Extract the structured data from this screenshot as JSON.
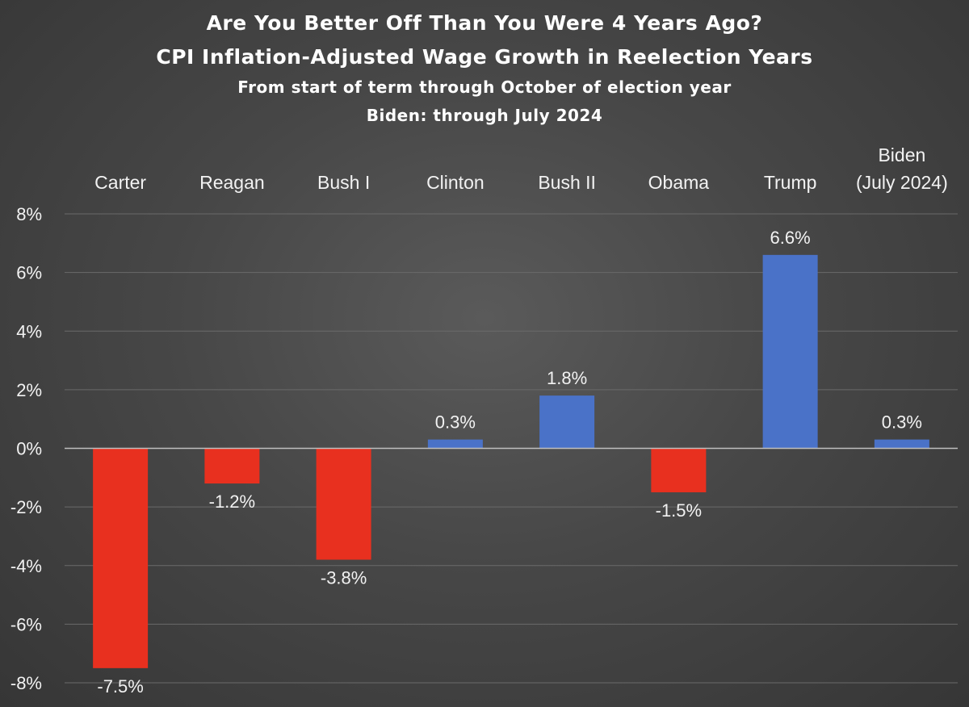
{
  "chart_data": {
    "type": "bar",
    "title": "Are You Better Off Than You Were 4 Years Ago?",
    "subtitle": "CPI Inflation-Adjusted Wage Growth in Reelection Years",
    "notes": [
      "From start of term through October of election year",
      "Biden: through July 2024"
    ],
    "categories": [
      [
        "Carter"
      ],
      [
        "Reagan"
      ],
      [
        "Bush I"
      ],
      [
        "Clinton"
      ],
      [
        "Bush II"
      ],
      [
        "Obama"
      ],
      [
        "Trump"
      ],
      [
        "Biden",
        "(July 2024)"
      ]
    ],
    "values": [
      -7.5,
      -1.2,
      -3.8,
      0.3,
      1.8,
      -1.5,
      6.6,
      0.3
    ],
    "data_labels": [
      "-7.5%",
      "-1.2%",
      "-3.8%",
      "0.3%",
      "1.8%",
      "-1.5%",
      "6.6%",
      "0.3%"
    ],
    "yticks": [
      8,
      6,
      4,
      2,
      0,
      -2,
      -4,
      -6,
      -8
    ],
    "ytick_labels": [
      "8%",
      "6%",
      "4%",
      "2%",
      "0%",
      "-2%",
      "-4%",
      "-6%",
      "-8%"
    ],
    "ylim": [
      -8,
      8
    ],
    "grid": true,
    "colors": {
      "positive": "#4a72c8",
      "negative": "#e8301f",
      "gridline": "#6a6a6a",
      "zero_line": "#bfbfbf"
    },
    "category_axis_position": "top",
    "legend": "none"
  }
}
